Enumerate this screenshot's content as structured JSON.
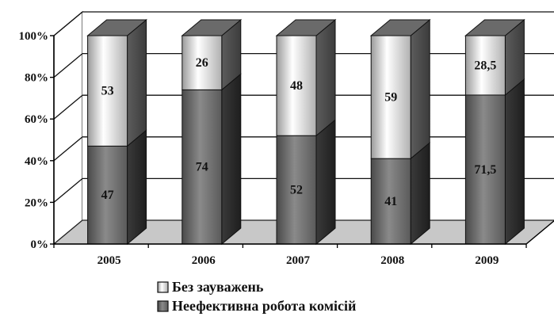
{
  "chart_data": {
    "type": "bar",
    "stacked": true,
    "percent": true,
    "three_d": true,
    "categories": [
      "2005",
      "2006",
      "2007",
      "2008",
      "2009"
    ],
    "series": [
      {
        "name": "Неефективна робота комісій",
        "values": [
          47,
          74,
          52,
          41,
          71.5
        ],
        "labels": [
          "47",
          "74",
          "52",
          "41",
          "71,5"
        ],
        "color": "#6e6e6e"
      },
      {
        "name": "Без зауважень",
        "values": [
          53,
          26,
          48,
          59,
          28.5
        ],
        "labels": [
          "53",
          "26",
          "48",
          "59",
          "28,5"
        ],
        "color": "#f2f2f2"
      }
    ],
    "y_ticks": [
      "0%",
      "20%",
      "40%",
      "60%",
      "80%",
      "100%"
    ],
    "ylim": [
      0,
      100
    ],
    "grid": true,
    "legend_position": "bottom"
  }
}
